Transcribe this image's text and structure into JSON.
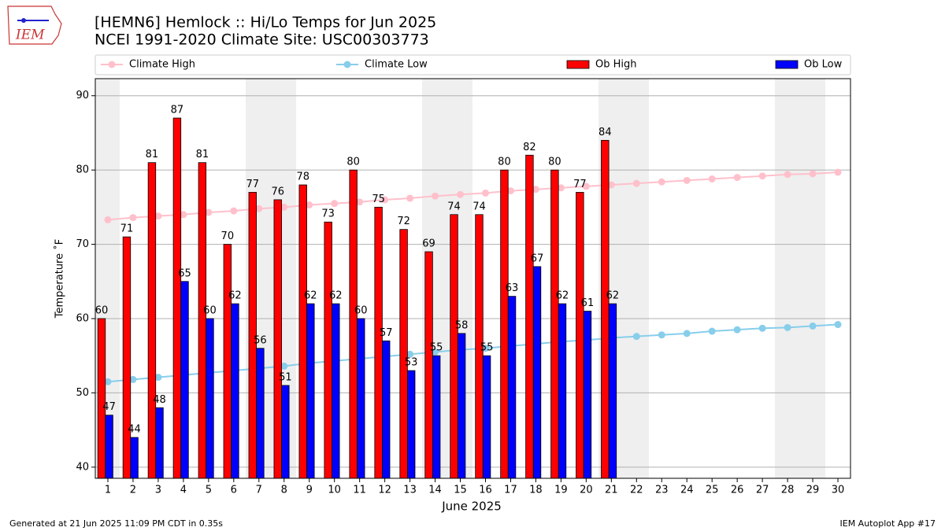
{
  "logo_text": "IEM",
  "footer_left": "Generated at 21 Jun 2025 11:09 PM CDT in 0.35s",
  "footer_right": "IEM Autoplot App #17",
  "chart_data": {
    "type": "bar",
    "title": "[HEMN6] Hemlock :: Hi/Lo Temps for Jun 2025",
    "subtitle": "NCEI 1991-2020 Climate Site: USC00303773",
    "xlabel": "June 2025",
    "ylabel": "Temperature ˚F",
    "x": [
      1,
      2,
      3,
      4,
      5,
      6,
      7,
      8,
      9,
      10,
      11,
      12,
      13,
      14,
      15,
      16,
      17,
      18,
      19,
      20,
      21,
      22,
      23,
      24,
      25,
      26,
      27,
      28,
      29,
      30
    ],
    "xlim": [
      0.5,
      30.5
    ],
    "xticks": [
      1,
      2,
      3,
      4,
      5,
      6,
      7,
      8,
      9,
      10,
      11,
      12,
      13,
      14,
      15,
      16,
      17,
      18,
      19,
      20,
      21,
      22,
      23,
      24,
      25,
      26,
      27,
      28,
      29,
      30
    ],
    "ylim": [
      38.5,
      92.3
    ],
    "yticks": [
      40,
      50,
      60,
      70,
      80,
      90
    ],
    "grid": true,
    "legend": "top",
    "series": [
      {
        "name": "Climate High",
        "type": "line",
        "color": "#ffc0cb",
        "values": [
          73.3,
          73.6,
          73.8,
          74.0,
          74.3,
          74.5,
          74.8,
          75.0,
          75.3,
          75.5,
          75.7,
          76.0,
          76.2,
          76.5,
          76.7,
          76.9,
          77.2,
          77.4,
          77.6,
          77.8,
          78.0,
          78.2,
          78.4,
          78.6,
          78.8,
          79.0,
          79.2,
          79.4,
          79.5,
          79.7
        ]
      },
      {
        "name": "Climate Low",
        "type": "line",
        "color": "#87ceeb",
        "values": [
          51.5,
          51.8,
          52.1,
          52.4,
          52.7,
          53.0,
          53.3,
          53.6,
          54.0,
          54.3,
          54.6,
          54.9,
          55.2,
          55.5,
          55.8,
          56.0,
          56.3,
          56.6,
          56.9,
          57.1,
          57.4,
          57.6,
          57.8,
          58.0,
          58.3,
          58.5,
          58.7,
          58.8,
          59.0,
          59.2
        ]
      },
      {
        "name": "Ob High",
        "type": "bar",
        "color": "#ff0000",
        "values": [
          60,
          71,
          81,
          87,
          81,
          70,
          77,
          76,
          78,
          73,
          80,
          75,
          72,
          69,
          74,
          74,
          80,
          82,
          80,
          77,
          84,
          null,
          null,
          null,
          null,
          null,
          null,
          null,
          null,
          null
        ]
      },
      {
        "name": "Ob Low",
        "type": "bar",
        "color": "#0000ff",
        "values": [
          47,
          44,
          48,
          65,
          60,
          62,
          56,
          51,
          62,
          62,
          60,
          57,
          53,
          55,
          58,
          55,
          63,
          67,
          62,
          61,
          62,
          null,
          null,
          null,
          null,
          null,
          null,
          null,
          null,
          null
        ]
      }
    ]
  }
}
